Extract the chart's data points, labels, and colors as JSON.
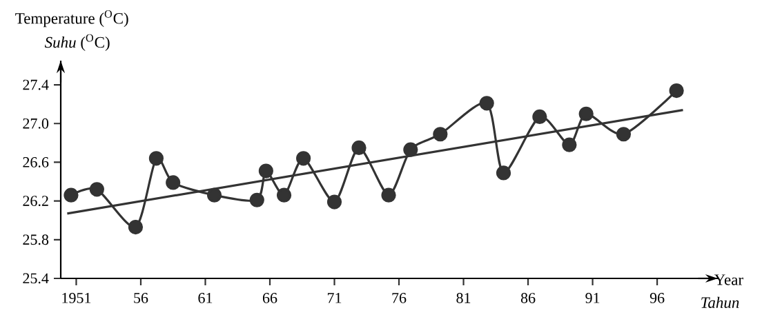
{
  "chart_data": {
    "type": "line",
    "ylabel": "Temperature ($^{O}$C)",
    "xlabel": "Year",
    "annotations": [
      "*Suhu* ($^{O}$C)",
      "Tahun"
    ],
    "xlim": [
      1949.8,
      2000.7
    ],
    "ylim": [
      25.4,
      27.65
    ],
    "xticks": [
      1951,
      {
        "value": 1956,
        "label": "56"
      },
      {
        "value": 1961,
        "label": "61"
      },
      {
        "value": 1966,
        "label": "66"
      },
      {
        "value": 1971,
        "label": "71"
      },
      {
        "value": 1976,
        "label": "76"
      },
      {
        "value": 1981,
        "label": "81"
      },
      {
        "value": 1986,
        "label": "86"
      },
      {
        "value": 1991,
        "label": "91"
      },
      {
        "value": 1996,
        "label": "96"
      }
    ],
    "yticks": [
      25.4,
      25.8,
      26.2,
      26.6,
      {
        "value": 27.0,
        "label": "27.0"
      },
      27.4
    ],
    "grid": false,
    "marker": "circle",
    "line_style": "solid",
    "series": [
      {
        "color": "#333333",
        "x": [
          1950.6,
          1952.6,
          1955.6,
          1957.2,
          1958.5,
          1961.7,
          1965.0,
          1965.7,
          1967.1,
          1968.6,
          1971.0,
          1972.9,
          1975.2,
          1976.9,
          1979.2,
          1982.8,
          1984.1,
          1986.9,
          1989.2,
          1990.5,
          1993.4,
          1997.5
        ],
        "values": [
          26.26,
          26.32,
          25.93,
          26.64,
          26.39,
          26.26,
          26.21,
          26.51,
          26.26,
          26.64,
          26.19,
          26.75,
          26.26,
          26.73,
          26.89,
          27.21,
          26.49,
          27.07,
          26.78,
          27.1,
          26.89,
          27.34
        ]
      },
      {
        "type": "line",
        "marker": "none",
        "color": "#333333",
        "x": [
          1950.3,
          1998.0
        ],
        "values": [
          26.07,
          27.14
        ]
      }
    ]
  }
}
